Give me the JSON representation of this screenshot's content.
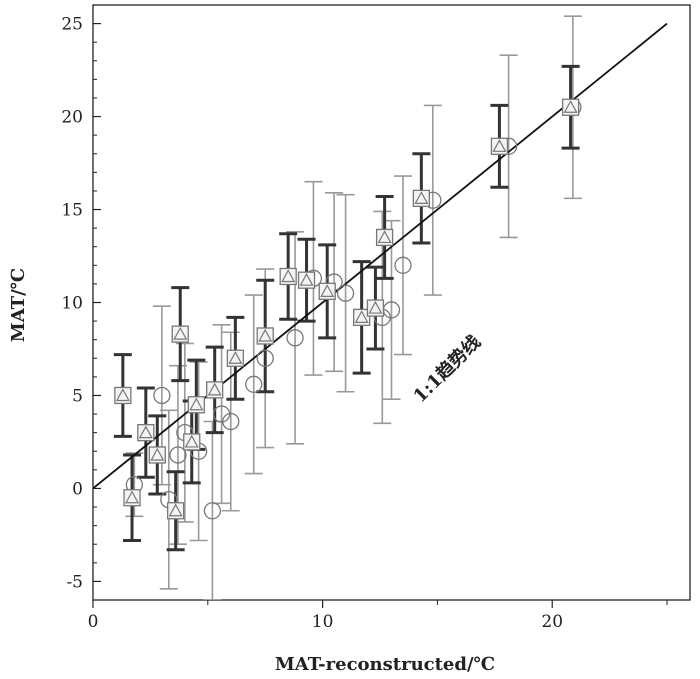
{
  "chart_data": {
    "type": "scatter",
    "title": "",
    "xlabel": "MAT-reconstructed/℃",
    "ylabel": "MAT/℃",
    "xlim": [
      0,
      26
    ],
    "ylim": [
      -6,
      26
    ],
    "xticks": [
      "0",
      "10",
      "20"
    ],
    "yticks": [
      "-5",
      "0",
      "5",
      "10",
      "15",
      "20",
      "25"
    ],
    "x_tick_values": [
      0,
      10,
      20
    ],
    "y_tick_values": [
      -5,
      0,
      5,
      10,
      15,
      20,
      25
    ],
    "grid": false,
    "trend_line": {
      "label": "1:1趋势线",
      "from": [
        0,
        0
      ],
      "to": [
        25,
        25
      ]
    },
    "colors": {
      "dark": "#333333",
      "light": "#999999",
      "marker": "#777777"
    },
    "series": [
      {
        "marker": "square-triangle",
        "points": [
          {
            "x": 1.3,
            "y": 5.0,
            "err": 2.2
          },
          {
            "x": 1.7,
            "y": -0.5,
            "err": 2.3
          },
          {
            "x": 2.3,
            "y": 3.0,
            "err": 2.4
          },
          {
            "x": 2.8,
            "y": 1.8,
            "err": 2.1
          },
          {
            "x": 3.6,
            "y": -1.2,
            "err": 2.1
          },
          {
            "x": 3.8,
            "y": 8.3,
            "err": 2.5
          },
          {
            "x": 4.3,
            "y": 2.5,
            "err": 2.2
          },
          {
            "x": 4.5,
            "y": 4.5,
            "err": 2.4
          },
          {
            "x": 5.3,
            "y": 5.3,
            "err": 2.3
          },
          {
            "x": 6.2,
            "y": 7.0,
            "err": 2.2
          },
          {
            "x": 7.5,
            "y": 8.2,
            "err": 3.0
          },
          {
            "x": 8.5,
            "y": 11.4,
            "err": 2.3
          },
          {
            "x": 9.3,
            "y": 11.2,
            "err": 2.2
          },
          {
            "x": 10.2,
            "y": 10.6,
            "err": 2.5
          },
          {
            "x": 11.7,
            "y": 9.2,
            "err": 3.0
          },
          {
            "x": 12.3,
            "y": 9.7,
            "err": 2.2
          },
          {
            "x": 12.7,
            "y": 13.5,
            "err": 2.2
          },
          {
            "x": 14.3,
            "y": 15.6,
            "err": 2.4
          },
          {
            "x": 17.7,
            "y": 18.4,
            "err": 2.2
          },
          {
            "x": 20.8,
            "y": 20.5,
            "err": 2.2
          }
        ]
      },
      {
        "marker": "circle",
        "points": [
          {
            "x": 1.8,
            "y": 0.2,
            "err": 1.7
          },
          {
            "x": 3.0,
            "y": 5.0,
            "err": 4.8
          },
          {
            "x": 3.3,
            "y": -0.6,
            "err": 4.8
          },
          {
            "x": 3.7,
            "y": 1.8,
            "err": 4.8
          },
          {
            "x": 4.0,
            "y": 3.0,
            "err": 4.8
          },
          {
            "x": 4.6,
            "y": 2.0,
            "err": 4.8
          },
          {
            "x": 5.2,
            "y": -1.2,
            "err": 4.8
          },
          {
            "x": 5.6,
            "y": 4.0,
            "err": 4.8
          },
          {
            "x": 6.0,
            "y": 3.6,
            "err": 4.8
          },
          {
            "x": 7.0,
            "y": 5.6,
            "err": 4.8
          },
          {
            "x": 7.5,
            "y": 7.0,
            "err": 4.8
          },
          {
            "x": 8.8,
            "y": 8.1,
            "err": 5.7
          },
          {
            "x": 9.6,
            "y": 11.3,
            "err": 5.2
          },
          {
            "x": 10.5,
            "y": 11.1,
            "err": 4.8
          },
          {
            "x": 11.0,
            "y": 10.5,
            "err": 5.3
          },
          {
            "x": 12.6,
            "y": 9.2,
            "err": 5.7
          },
          {
            "x": 13.0,
            "y": 9.6,
            "err": 4.8
          },
          {
            "x": 13.5,
            "y": 12.0,
            "err": 4.8
          },
          {
            "x": 14.8,
            "y": 15.5,
            "err": 5.1
          },
          {
            "x": 18.1,
            "y": 18.4,
            "err": 4.9
          },
          {
            "x": 20.9,
            "y": 20.5,
            "err": 4.9
          }
        ]
      }
    ]
  }
}
